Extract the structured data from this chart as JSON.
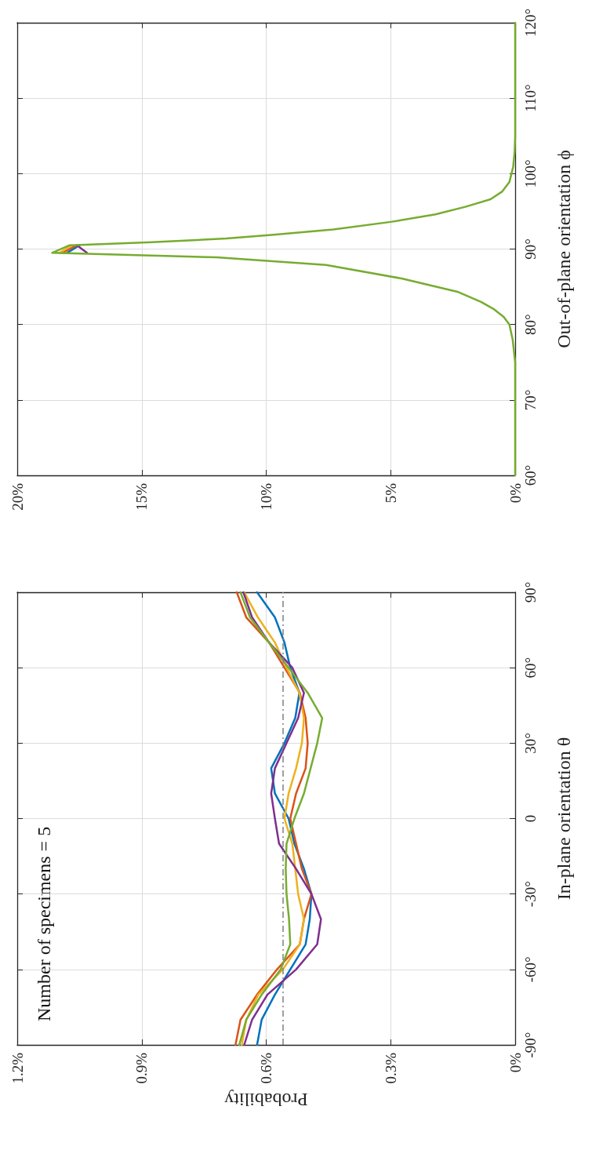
{
  "chart_data": [
    {
      "type": "line",
      "ylabel": "Out-of-plane orientation ϕ",
      "series": [
        {
          "color": "#0072bd",
          "x": [
            18.0,
            17.5
          ],
          "values": [
            89.5,
            90.5
          ]
        },
        {
          "color": "#d95319",
          "x": [
            18.2,
            17.6
          ],
          "values": [
            89.5,
            90.5
          ]
        },
        {
          "color": "#edb120",
          "x": [
            18.3,
            17.8
          ],
          "values": [
            89.5,
            90.5
          ]
        },
        {
          "color": "#7e2f8e",
          "x": [
            17.2,
            17.6
          ],
          "values": [
            89.5,
            90.5
          ]
        },
        {
          "color": "#77ac30",
          "x": [
            0,
            0,
            0,
            0,
            0.1,
            0.23,
            0.46,
            0.84,
            1.37,
            2.28,
            4.56,
            7.6,
            12.0,
            18.6,
            17.9,
            14.6,
            11.6,
            9.7,
            7.3,
            5.0,
            3.2,
            2.0,
            0.99,
            0.53,
            0.23,
            0.08,
            0.02,
            0,
            0,
            0,
            0
          ],
          "values": [
            60,
            65,
            70,
            75,
            78,
            80,
            81,
            82,
            83,
            84.3,
            86.1,
            87.9,
            88.9,
            89.5,
            90.5,
            90.9,
            91.4,
            91.9,
            92.6,
            93.6,
            94.6,
            95.6,
            96.6,
            97.6,
            98.9,
            100.9,
            102.9,
            105,
            110,
            115,
            120
          ]
        }
      ],
      "ylim": [
        60,
        120
      ],
      "yticks": [
        {
          "value": 60,
          "label": "60°"
        },
        {
          "value": 70,
          "label": "70°"
        },
        {
          "value": 80,
          "label": "80°"
        },
        {
          "value": 90,
          "label": "90°"
        },
        {
          "value": 100,
          "label": "100°"
        },
        {
          "value": 110,
          "label": "110°"
        },
        {
          "value": 120,
          "label": "120°"
        }
      ],
      "xlim": [
        20,
        0
      ],
      "xticks": [
        {
          "value": 0,
          "label": "0%"
        },
        {
          "value": 5,
          "label": "5%"
        },
        {
          "value": 10,
          "label": "10%"
        },
        {
          "value": 15,
          "label": "15%"
        },
        {
          "value": 20,
          "label": "20%"
        }
      ],
      "grid": true,
      "marker": "none",
      "line_style": "solid"
    },
    {
      "type": "line",
      "ylabel": "In-plane orientation θ",
      "xlabel": "Probability",
      "annotations": [
        "Number of specimens = 5"
      ],
      "series": [
        {
          "color": "#0072bd",
          "x": [
            0.622,
            0.611,
            0.579,
            0.542,
            0.505,
            0.495,
            0.491,
            0.509,
            0.532,
            0.546,
            0.579,
            0.588,
            0.556,
            0.53,
            0.52,
            0.542,
            0.556,
            0.579,
            0.622
          ],
          "values": [
            -90,
            -80,
            -70,
            -60,
            -50,
            -40,
            -30,
            -20,
            -10,
            0,
            10,
            20,
            30,
            40,
            50,
            60,
            70,
            80,
            90
          ]
        },
        {
          "color": "#d95319",
          "x": [
            0.674,
            0.662,
            0.622,
            0.574,
            0.519,
            0.509,
            0.491,
            0.514,
            0.528,
            0.542,
            0.528,
            0.505,
            0.5,
            0.505,
            0.519,
            0.556,
            0.593,
            0.648,
            0.671
          ],
          "values": [
            -90,
            -80,
            -70,
            -60,
            -50,
            -40,
            -30,
            -20,
            -10,
            0,
            10,
            20,
            30,
            40,
            50,
            60,
            70,
            80,
            90
          ]
        },
        {
          "color": "#edb120",
          "x": [
            0.659,
            0.648,
            0.619,
            0.56,
            0.519,
            0.509,
            0.523,
            0.53,
            0.537,
            0.556,
            0.546,
            0.528,
            0.514,
            0.509,
            0.52,
            0.551,
            0.579,
            0.62,
            0.653
          ],
          "values": [
            -90,
            -80,
            -70,
            -60,
            -50,
            -40,
            -30,
            -20,
            -10,
            0,
            10,
            20,
            30,
            40,
            50,
            60,
            70,
            80,
            90
          ]
        },
        {
          "color": "#7e2f8e",
          "x": [
            0.653,
            0.634,
            0.597,
            0.528,
            0.477,
            0.468,
            0.491,
            0.528,
            0.569,
            0.579,
            0.588,
            0.579,
            0.551,
            0.523,
            0.509,
            0.537,
            0.593,
            0.634,
            0.655
          ],
          "values": [
            -90,
            -80,
            -70,
            -60,
            -50,
            -40,
            -30,
            -20,
            -10,
            0,
            10,
            20,
            30,
            40,
            50,
            60,
            70,
            80,
            90
          ]
        },
        {
          "color": "#77ac30",
          "x": [
            0.665,
            0.648,
            0.611,
            0.565,
            0.542,
            0.545,
            0.551,
            0.553,
            0.551,
            0.532,
            0.509,
            0.493,
            0.477,
            0.465,
            0.5,
            0.546,
            0.593,
            0.639,
            0.662
          ],
          "values": [
            -90,
            -80,
            -70,
            -60,
            -50,
            -40,
            -30,
            -20,
            -10,
            0,
            10,
            20,
            30,
            40,
            50,
            60,
            70,
            80,
            90
          ]
        }
      ],
      "ylim": [
        -90,
        90
      ],
      "yticks": [
        {
          "value": -90,
          "label": "-90°"
        },
        {
          "value": -60,
          "label": "-60°"
        },
        {
          "value": -30,
          "label": "-30°"
        },
        {
          "value": 0,
          "label": "0"
        },
        {
          "value": 30,
          "label": "30°"
        },
        {
          "value": 60,
          "label": "60°"
        },
        {
          "value": 90,
          "label": "90°"
        }
      ],
      "xlim": [
        1.2,
        0
      ],
      "xticks": [
        {
          "value": 0,
          "label": "0%"
        },
        {
          "value": 0.3,
          "label": "0.3%"
        },
        {
          "value": 0.6,
          "label": "0.6%"
        },
        {
          "value": 0.9,
          "label": "0.9%"
        },
        {
          "value": 1.2,
          "label": "1.2%"
        }
      ],
      "ref_lines": [
        {
          "axis": "x",
          "value": 0.556,
          "color": "#808080",
          "line_style": "dashed"
        }
      ],
      "grid": true,
      "marker": "none",
      "line_style": "solid"
    }
  ]
}
